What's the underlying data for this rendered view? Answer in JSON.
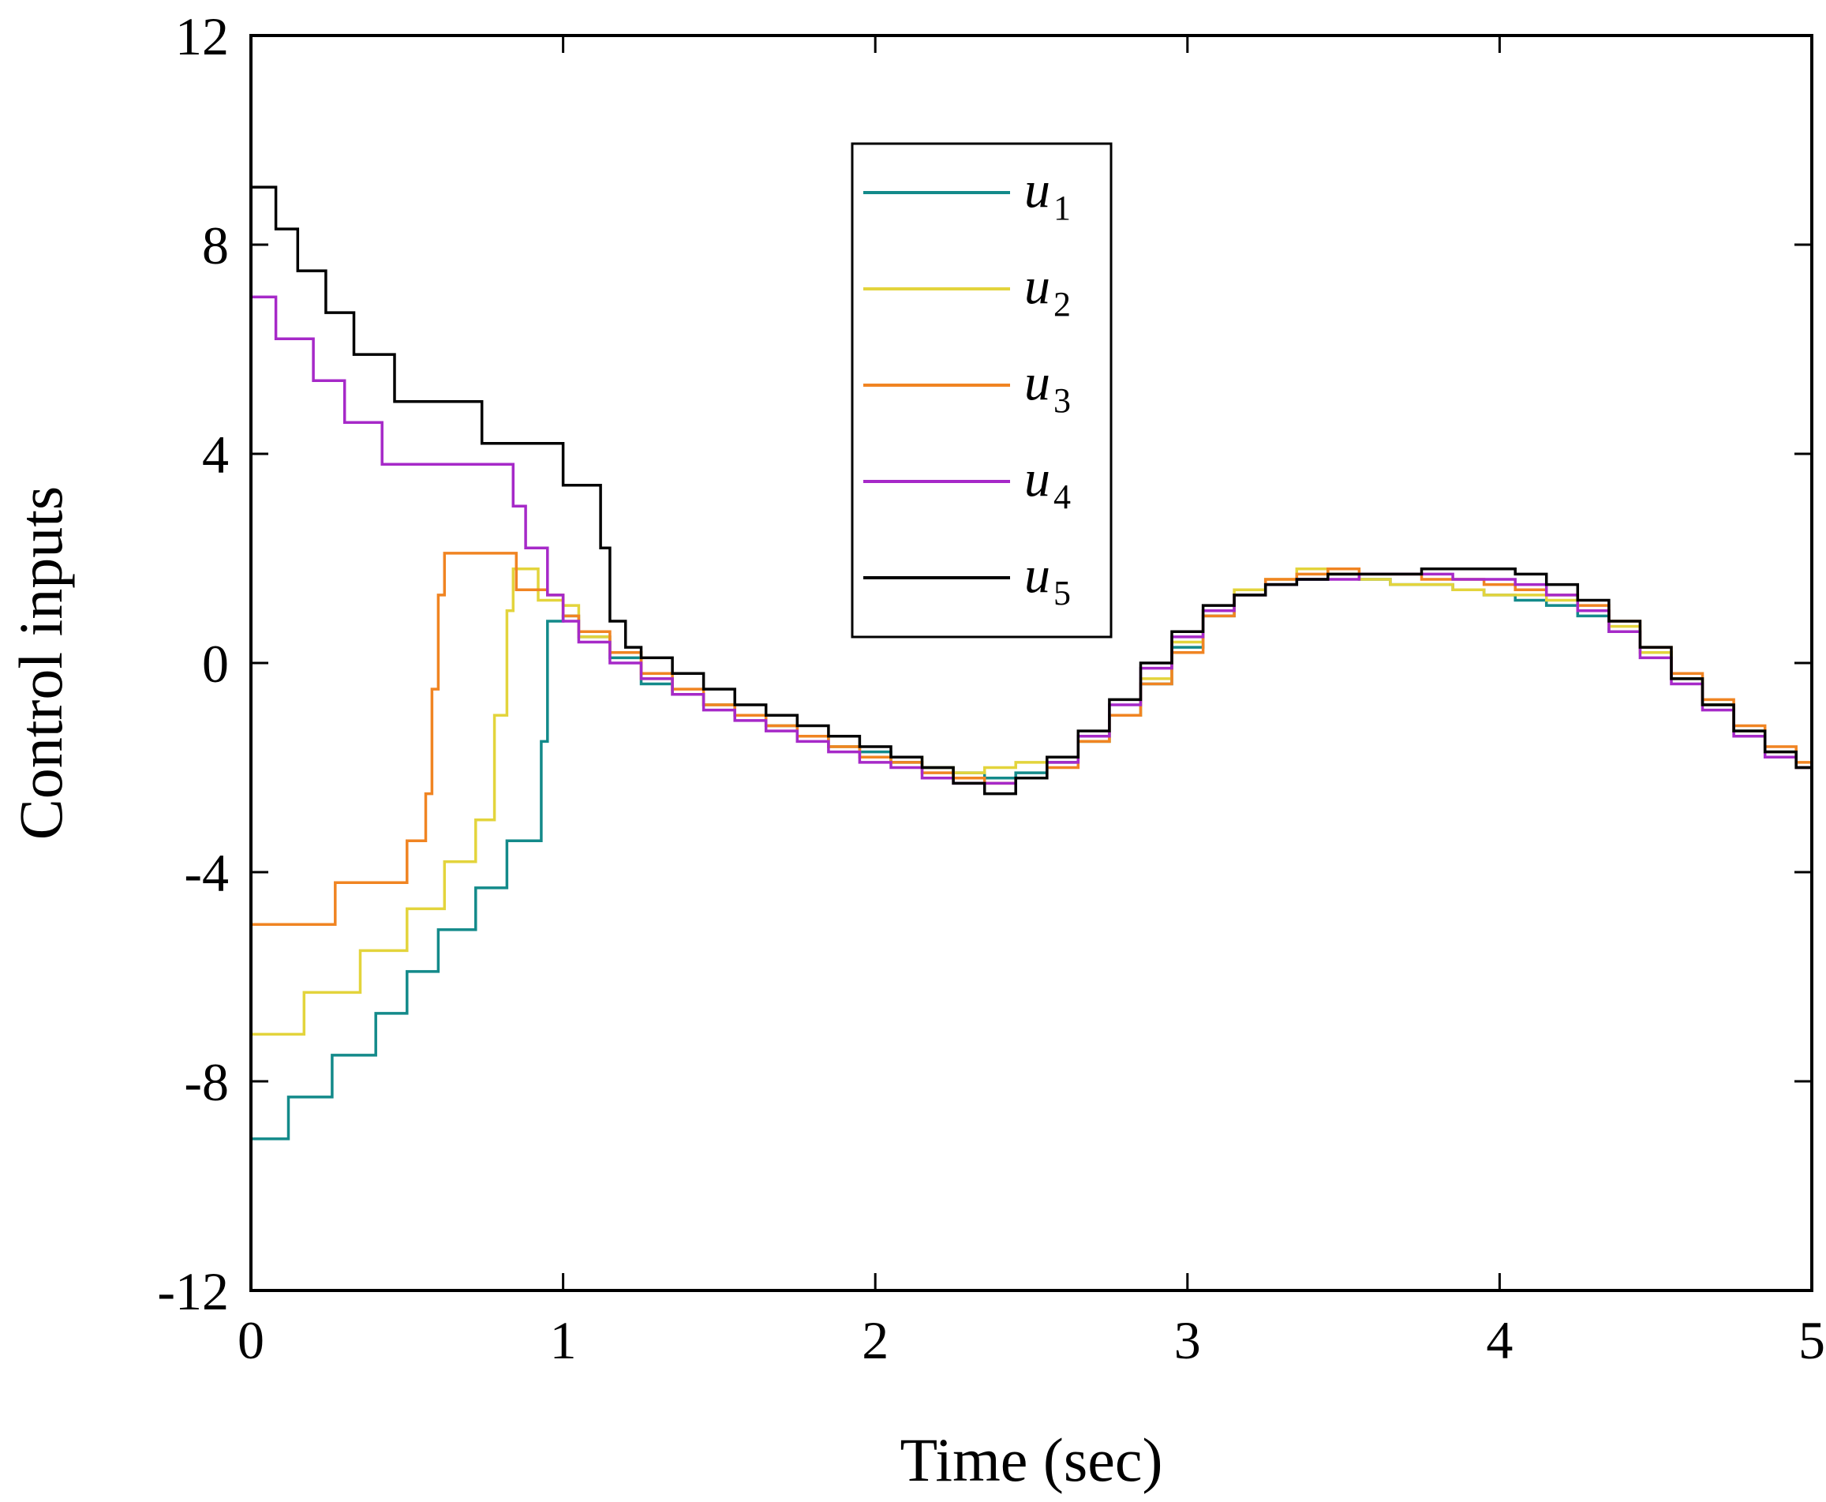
{
  "chart_data": {
    "type": "line",
    "title": "",
    "xlabel": "Time (sec)",
    "ylabel": "Control inputs",
    "xlim": [
      0,
      5
    ],
    "ylim": [
      -12,
      12
    ],
    "xticks": [
      "0",
      "1",
      "2",
      "3",
      "4",
      "5"
    ],
    "yticks": [
      "-12",
      "-8",
      "-4",
      "0",
      "4",
      "8",
      "12"
    ],
    "grid": false,
    "legend_position": "top-center",
    "series": [
      {
        "name": "u",
        "subscript": "1",
        "color": "#138a8a",
        "x": [
          0,
          0.12,
          0.12,
          0.26,
          0.26,
          0.4,
          0.4,
          0.5,
          0.5,
          0.6,
          0.6,
          0.72,
          0.72,
          0.82,
          0.82,
          0.9,
          0.93,
          0.95,
          0.95,
          1.0,
          1.05,
          1.15,
          1.25,
          1.35,
          1.45,
          1.55,
          1.65,
          1.75,
          1.85,
          1.95,
          2.05,
          2.15,
          2.25,
          2.35,
          2.45,
          2.55,
          2.65,
          2.75,
          2.85,
          2.95,
          3.05,
          3.15,
          3.25,
          3.35,
          3.45,
          3.55,
          3.65,
          3.75,
          3.85,
          3.95,
          4.05,
          4.15,
          4.25,
          4.35,
          4.45,
          4.55,
          4.65,
          4.75,
          4.85,
          4.95,
          5.0
        ],
        "y": [
          -9.1,
          -9.1,
          -8.3,
          -8.3,
          -7.5,
          -7.5,
          -6.7,
          -6.7,
          -5.9,
          -5.9,
          -5.1,
          -5.1,
          -4.3,
          -4.3,
          -3.4,
          -3.4,
          -1.5,
          0.8,
          0.8,
          0.9,
          0.5,
          0.1,
          -0.4,
          -0.6,
          -0.8,
          -1.0,
          -1.2,
          -1.4,
          -1.6,
          -1.7,
          -1.9,
          -2.0,
          -2.1,
          -2.2,
          -2.1,
          -1.9,
          -1.5,
          -1.0,
          -0.4,
          0.3,
          0.9,
          1.3,
          1.5,
          1.6,
          1.7,
          1.6,
          1.5,
          1.5,
          1.4,
          1.3,
          1.2,
          1.1,
          0.9,
          0.6,
          0.2,
          -0.3,
          -0.8,
          -1.3,
          -1.7,
          -2.0,
          -2.1
        ]
      },
      {
        "name": "u",
        "subscript": "2",
        "color": "#e3d43c",
        "x": [
          0,
          0.17,
          0.17,
          0.35,
          0.35,
          0.5,
          0.5,
          0.62,
          0.62,
          0.72,
          0.72,
          0.78,
          0.82,
          0.84,
          0.84,
          0.92,
          0.92,
          1.0,
          1.05,
          1.15,
          1.25,
          1.35,
          1.45,
          1.55,
          1.65,
          1.75,
          1.85,
          1.95,
          2.05,
          2.15,
          2.25,
          2.35,
          2.45,
          2.55,
          2.65,
          2.75,
          2.85,
          2.95,
          3.05,
          3.15,
          3.25,
          3.35,
          3.45,
          3.55,
          3.65,
          3.75,
          3.85,
          3.95,
          4.05,
          4.15,
          4.25,
          4.35,
          4.45,
          4.55,
          4.65,
          4.75,
          4.85,
          4.95,
          5.0
        ],
        "y": [
          -7.1,
          -7.1,
          -6.3,
          -6.3,
          -5.5,
          -5.5,
          -4.7,
          -4.7,
          -3.8,
          -3.8,
          -3.0,
          -1.0,
          1.0,
          1.8,
          1.8,
          1.8,
          1.2,
          1.1,
          0.5,
          0.2,
          -0.3,
          -0.6,
          -0.8,
          -1.0,
          -1.2,
          -1.4,
          -1.6,
          -1.8,
          -1.8,
          -2.0,
          -2.1,
          -2.0,
          -1.9,
          -1.8,
          -1.5,
          -1.0,
          -0.3,
          0.4,
          1.0,
          1.4,
          1.6,
          1.8,
          1.7,
          1.6,
          1.5,
          1.5,
          1.4,
          1.3,
          1.3,
          1.2,
          1.0,
          0.7,
          0.2,
          -0.3,
          -0.8,
          -1.3,
          -1.7,
          -2.0,
          -2.1
        ]
      },
      {
        "name": "u",
        "subscript": "3",
        "color": "#f08422",
        "x": [
          0,
          0.27,
          0.27,
          0.5,
          0.5,
          0.56,
          0.56,
          0.58,
          0.6,
          0.62,
          0.62,
          0.85,
          0.85,
          0.95,
          1.0,
          1.05,
          1.15,
          1.25,
          1.35,
          1.45,
          1.55,
          1.65,
          1.75,
          1.85,
          1.95,
          2.05,
          2.15,
          2.25,
          2.35,
          2.45,
          2.55,
          2.65,
          2.75,
          2.85,
          2.95,
          3.05,
          3.15,
          3.25,
          3.35,
          3.45,
          3.55,
          3.65,
          3.75,
          3.85,
          3.95,
          4.05,
          4.15,
          4.25,
          4.35,
          4.45,
          4.55,
          4.65,
          4.75,
          4.85,
          4.95,
          5.0
        ],
        "y": [
          -5.0,
          -5.0,
          -4.2,
          -4.2,
          -3.4,
          -3.4,
          -2.5,
          -0.5,
          1.3,
          2.1,
          2.1,
          2.1,
          1.4,
          1.3,
          0.9,
          0.6,
          0.2,
          -0.2,
          -0.5,
          -0.8,
          -1.0,
          -1.2,
          -1.4,
          -1.6,
          -1.8,
          -1.9,
          -2.1,
          -2.2,
          -2.3,
          -2.2,
          -2.0,
          -1.5,
          -1.0,
          -0.4,
          0.2,
          0.9,
          1.3,
          1.6,
          1.7,
          1.8,
          1.7,
          1.7,
          1.6,
          1.6,
          1.5,
          1.4,
          1.3,
          1.1,
          0.8,
          0.3,
          -0.2,
          -0.7,
          -1.2,
          -1.6,
          -1.9,
          -2.1
        ]
      },
      {
        "name": "u",
        "subscript": "4",
        "color": "#a629c8",
        "x": [
          0,
          0.08,
          0.08,
          0.2,
          0.2,
          0.3,
          0.3,
          0.42,
          0.42,
          0.84,
          0.84,
          0.88,
          0.88,
          0.95,
          0.95,
          1.0,
          1.05,
          1.15,
          1.25,
          1.35,
          1.45,
          1.55,
          1.65,
          1.75,
          1.85,
          1.95,
          2.05,
          2.15,
          2.25,
          2.35,
          2.45,
          2.55,
          2.65,
          2.75,
          2.85,
          2.95,
          3.05,
          3.15,
          3.25,
          3.35,
          3.45,
          3.55,
          3.65,
          3.75,
          3.85,
          3.95,
          4.05,
          4.15,
          4.25,
          4.35,
          4.45,
          4.55,
          4.65,
          4.75,
          4.85,
          4.95,
          5.0
        ],
        "y": [
          7.0,
          7.0,
          6.2,
          6.2,
          5.4,
          5.4,
          4.6,
          4.6,
          3.8,
          3.8,
          3.0,
          3.0,
          2.2,
          2.2,
          1.3,
          0.8,
          0.4,
          0.0,
          -0.3,
          -0.6,
          -0.9,
          -1.1,
          -1.3,
          -1.5,
          -1.7,
          -1.9,
          -2.0,
          -2.2,
          -2.3,
          -2.3,
          -2.2,
          -1.9,
          -1.4,
          -0.8,
          -0.1,
          0.5,
          1.0,
          1.3,
          1.5,
          1.6,
          1.6,
          1.7,
          1.7,
          1.7,
          1.6,
          1.6,
          1.5,
          1.3,
          1.0,
          0.6,
          0.1,
          -0.4,
          -0.9,
          -1.4,
          -1.8,
          -2.0,
          -2.2
        ]
      },
      {
        "name": "u",
        "subscript": "5",
        "color": "#000000",
        "x": [
          0,
          0.08,
          0.08,
          0.15,
          0.15,
          0.24,
          0.24,
          0.33,
          0.33,
          0.46,
          0.46,
          0.74,
          0.74,
          1.0,
          1.0,
          1.1,
          1.12,
          1.15,
          1.2,
          1.25,
          1.35,
          1.45,
          1.55,
          1.65,
          1.75,
          1.85,
          1.95,
          2.05,
          2.15,
          2.25,
          2.35,
          2.45,
          2.55,
          2.65,
          2.75,
          2.85,
          2.95,
          3.05,
          3.15,
          3.25,
          3.35,
          3.45,
          3.55,
          3.65,
          3.75,
          3.85,
          3.95,
          4.05,
          4.15,
          4.25,
          4.35,
          4.45,
          4.55,
          4.65,
          4.75,
          4.85,
          4.95,
          5.0
        ],
        "y": [
          9.1,
          9.1,
          8.3,
          8.3,
          7.5,
          7.5,
          6.7,
          6.7,
          5.9,
          5.9,
          5.0,
          5.0,
          4.2,
          4.2,
          3.4,
          3.4,
          2.2,
          0.8,
          0.3,
          0.1,
          -0.2,
          -0.5,
          -0.8,
          -1.0,
          -1.2,
          -1.4,
          -1.6,
          -1.8,
          -2.0,
          -2.3,
          -2.5,
          -2.2,
          -1.8,
          -1.3,
          -0.7,
          0.0,
          0.6,
          1.1,
          1.3,
          1.5,
          1.6,
          1.7,
          1.7,
          1.7,
          1.8,
          1.8,
          1.8,
          1.7,
          1.5,
          1.2,
          0.8,
          0.3,
          -0.3,
          -0.8,
          -1.3,
          -1.7,
          -2.0,
          -2.4
        ]
      }
    ]
  }
}
